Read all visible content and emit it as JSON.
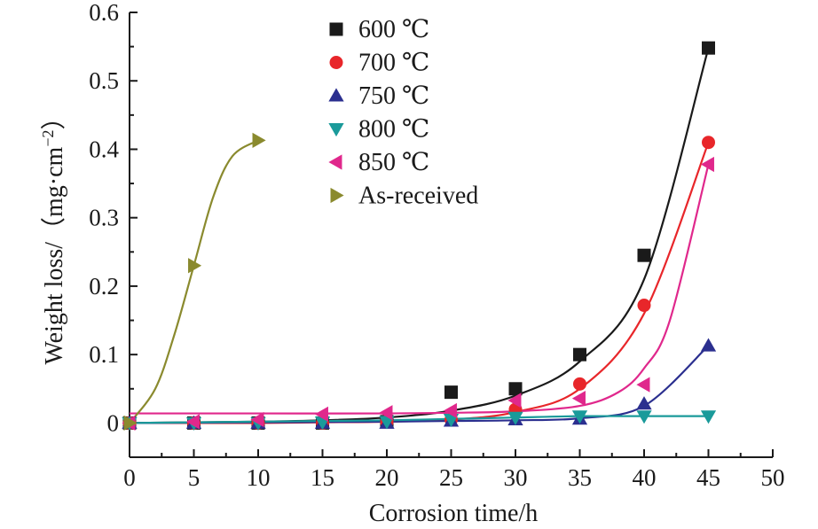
{
  "chart_data": {
    "type": "scatter",
    "title": "",
    "xlabel": "Corrosion time/h",
    "ylabel": "Weight loss/（mg·cm",
    "ylabel_sup": "−2",
    "ylabel_close": "）",
    "xlim": [
      0,
      50
    ],
    "ylim": [
      -0.05,
      0.6
    ],
    "x_ticks": [
      0,
      5,
      10,
      15,
      20,
      25,
      30,
      35,
      40,
      45,
      50
    ],
    "y_ticks": [
      0,
      0.1,
      0.2,
      0.3,
      0.4,
      0.5,
      0.6
    ],
    "y_tick_labels": [
      "0",
      "0.1",
      "0.2",
      "0.3",
      "0.4",
      "0.5",
      "0.6"
    ],
    "grid": false,
    "legend_position": "top-center",
    "series": [
      {
        "name": "600 ℃",
        "marker": "square",
        "marker_color": "#1a1a1a",
        "line_color": "#1a1a1a",
        "x": [
          0,
          5,
          10,
          15,
          20,
          25,
          30,
          35,
          40,
          45
        ],
        "y": [
          0,
          0,
          0,
          0,
          0.002,
          0.045,
          0.05,
          0.1,
          0.245,
          0.548
        ],
        "fit": [
          [
            0,
            0
          ],
          [
            5,
            0.001
          ],
          [
            10,
            0.002
          ],
          [
            15,
            0.004
          ],
          [
            20,
            0.008
          ],
          [
            25,
            0.018
          ],
          [
            30,
            0.04
          ],
          [
            35,
            0.09
          ],
          [
            40,
            0.21
          ],
          [
            45,
            0.548
          ]
        ]
      },
      {
        "name": "700 ℃",
        "marker": "circle",
        "marker_color": "#e8262a",
        "line_color": "#e8262a",
        "x": [
          0,
          5,
          10,
          15,
          20,
          25,
          30,
          35,
          40,
          45
        ],
        "y": [
          0,
          0,
          0,
          0,
          0.002,
          0.005,
          0.02,
          0.057,
          0.172,
          0.41
        ],
        "fit": [
          [
            0,
            0
          ],
          [
            5,
            0
          ],
          [
            10,
            0
          ],
          [
            15,
            0.001
          ],
          [
            20,
            0.002
          ],
          [
            25,
            0.005
          ],
          [
            30,
            0.016
          ],
          [
            35,
            0.05
          ],
          [
            40,
            0.16
          ],
          [
            45,
            0.41
          ]
        ]
      },
      {
        "name": "750 ℃",
        "marker": "triangle-up",
        "marker_color": "#2b2f8f",
        "line_color": "#2b2f8f",
        "x": [
          0,
          5,
          10,
          15,
          20,
          25,
          30,
          35,
          40,
          45
        ],
        "y": [
          0,
          0,
          0,
          0,
          0,
          0.003,
          0.005,
          0.006,
          0.028,
          0.113
        ],
        "fit": [
          [
            0,
            0
          ],
          [
            10,
            0.001
          ],
          [
            20,
            0.002
          ],
          [
            25,
            0.003
          ],
          [
            30,
            0.004
          ],
          [
            35,
            0.007
          ],
          [
            40,
            0.025
          ],
          [
            45,
            0.113
          ]
        ]
      },
      {
        "name": "800 ℃",
        "marker": "triangle-down",
        "marker_color": "#1a9a9a",
        "line_color": "#1a9a9a",
        "x": [
          0,
          5,
          10,
          15,
          20,
          25,
          30,
          35,
          40,
          45
        ],
        "y": [
          0,
          0,
          0,
          0.001,
          0.002,
          0.005,
          0.008,
          0.01,
          0.01,
          0.01
        ],
        "fit": [
          [
            0,
            0
          ],
          [
            5,
            0.001
          ],
          [
            10,
            0.002
          ],
          [
            15,
            0.003
          ],
          [
            20,
            0.004
          ],
          [
            25,
            0.006
          ],
          [
            30,
            0.008
          ],
          [
            35,
            0.01
          ],
          [
            40,
            0.01
          ],
          [
            45,
            0.01
          ]
        ]
      },
      {
        "name": "850 ℃",
        "marker": "triangle-left",
        "marker_color": "#e0288c",
        "line_color": "#e0288c",
        "x": [
          0,
          5,
          10,
          15,
          20,
          25,
          30,
          35,
          40,
          45
        ],
        "y": [
          0,
          0.002,
          0.005,
          0.013,
          0.015,
          0.018,
          0.033,
          0.036,
          0.056,
          0.378
        ],
        "fit": [
          [
            0,
            0.014
          ],
          [
            10,
            0.014
          ],
          [
            20,
            0.014
          ],
          [
            25,
            0.015
          ],
          [
            30,
            0.017
          ],
          [
            35,
            0.025
          ],
          [
            38,
            0.045
          ],
          [
            40,
            0.08
          ],
          [
            42,
            0.15
          ],
          [
            45,
            0.378
          ]
        ]
      },
      {
        "name": "As-received",
        "marker": "triangle-right",
        "marker_color": "#8a8a2e",
        "line_color": "#8a8a2e",
        "x": [
          0,
          5,
          10
        ],
        "y": [
          0,
          0.23,
          0.413
        ],
        "fit": [
          [
            0,
            0
          ],
          [
            2,
            0.05
          ],
          [
            3.5,
            0.13
          ],
          [
            5,
            0.23
          ],
          [
            6.5,
            0.33
          ],
          [
            8,
            0.39
          ],
          [
            10,
            0.413
          ]
        ]
      }
    ]
  }
}
